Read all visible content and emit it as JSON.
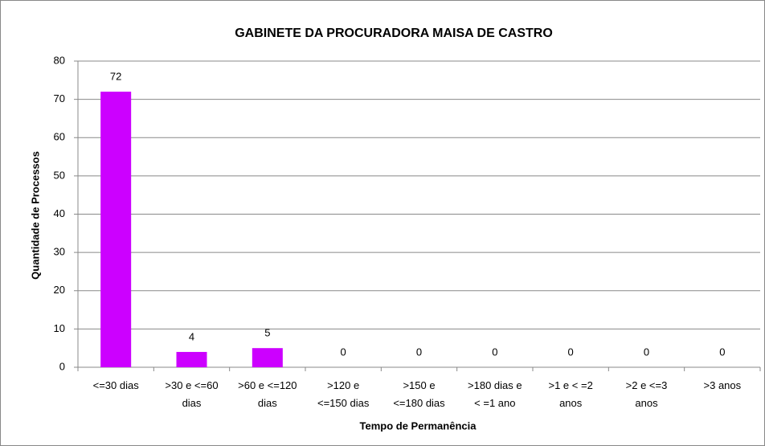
{
  "chart_data": {
    "type": "bar",
    "title": "GABINETE DA PROCURADORA MAISA DE CASTRO",
    "xlabel": "Tempo de Permanência",
    "ylabel": "Quantidade de Processos",
    "categories": [
      "<=30 dias",
      ">30 e <=60\ndias",
      ">60 e <=120\ndias",
      ">120 e\n<=150 dias",
      ">150 e\n<=180 dias",
      ">180 dias e\n< =1 ano",
      ">1 e < =2\nanos",
      ">2 e <=3\nanos",
      ">3 anos"
    ],
    "values": [
      72,
      4,
      5,
      0,
      0,
      0,
      0,
      0,
      0
    ],
    "color": "#cc00ff",
    "ylim": [
      0,
      80
    ],
    "yticks": [
      0,
      10,
      20,
      30,
      40,
      50,
      60,
      70,
      80
    ],
    "grid": true
  }
}
